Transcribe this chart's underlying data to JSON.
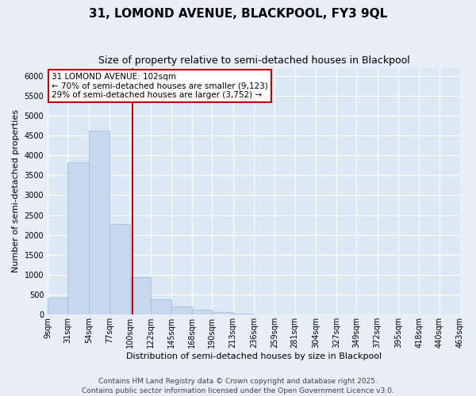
{
  "title_line1": "31, LOMOND AVENUE, BLACKPOOL, FY3 9QL",
  "title_line2": "Size of property relative to semi-detached houses in Blackpool",
  "xlabel": "Distribution of semi-detached houses by size in Blackpool",
  "ylabel": "Number of semi-detached properties",
  "annotation_line1": "31 LOMOND AVENUE: 102sqm",
  "annotation_line2": "← 70% of semi-detached houses are smaller (9,123)",
  "annotation_line3": "29% of semi-detached houses are larger (3,752) →",
  "property_size": 102,
  "footer_line1": "Contains HM Land Registry data © Crown copyright and database right 2025.",
  "footer_line2": "Contains public sector information licensed under the Open Government Licence v3.0.",
  "bar_color": "#c5d8ed",
  "bar_edge_color": "#9ab8d8",
  "vline_color": "#cc0000",
  "fig_bg_color": "#e8eef5",
  "plot_bg_color": "#dce9f5",
  "grid_color": "#ffffff",
  "annotation_box_facecolor": "#ffffff",
  "annotation_box_edgecolor": "#cc0000",
  "bins": [
    9,
    31,
    54,
    77,
    100,
    122,
    145,
    168,
    190,
    213,
    236,
    259,
    281,
    304,
    327,
    349,
    372,
    395,
    418,
    440,
    463
  ],
  "counts": [
    430,
    3820,
    4620,
    2280,
    950,
    380,
    200,
    130,
    70,
    30,
    10,
    5,
    2,
    1,
    0,
    0,
    0,
    0,
    0,
    0
  ],
  "ylim": [
    0,
    6200
  ],
  "yticks": [
    0,
    500,
    1000,
    1500,
    2000,
    2500,
    3000,
    3500,
    4000,
    4500,
    5000,
    5500,
    6000
  ],
  "title_fontsize": 11,
  "subtitle_fontsize": 9,
  "axis_label_fontsize": 8,
  "tick_fontsize": 7,
  "annotation_fontsize": 7.5,
  "footer_fontsize": 6.5
}
